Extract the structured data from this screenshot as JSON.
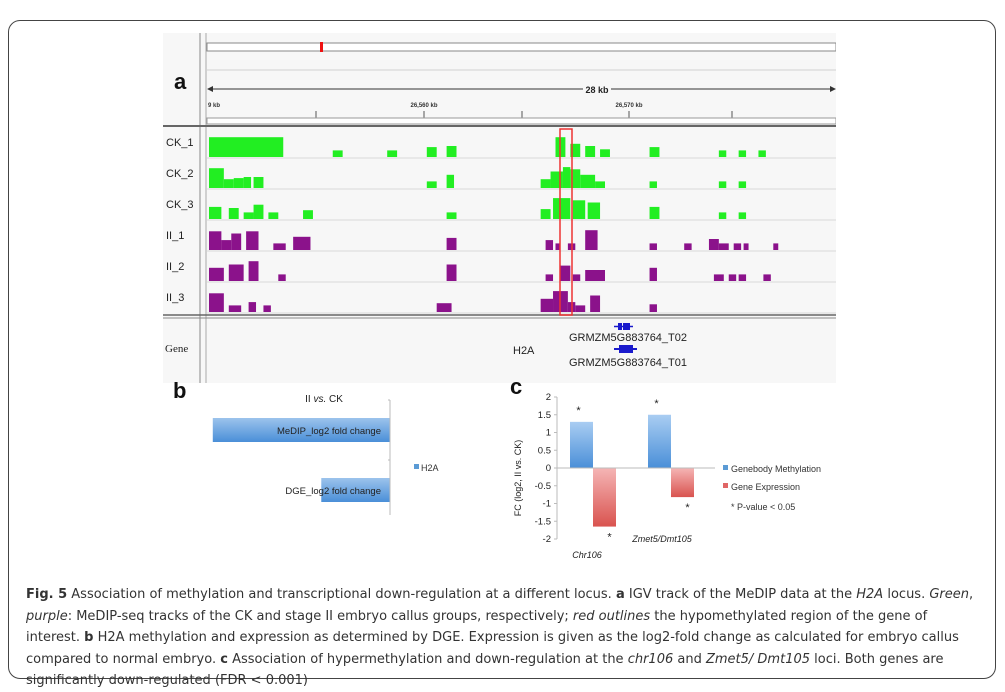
{
  "panels": {
    "a": {
      "letter": "a",
      "ruler": {
        "span_label": "28 kb",
        "ticks": [
          "9 kb",
          "26,560 kb",
          "26,570 kb"
        ]
      },
      "tracks": [
        {
          "name": "CK_1",
          "group": "CK",
          "color": "#22ee22",
          "peaks": [
            [
              0,
              15,
              0.9
            ],
            [
              6,
              9,
              0.3
            ],
            [
              11,
              14,
              0.65
            ],
            [
              25,
              27,
              0.3
            ],
            [
              36,
              38,
              0.3
            ],
            [
              44,
              46,
              0.45
            ],
            [
              48,
              50,
              0.5
            ],
            [
              70,
              72,
              0.9
            ],
            [
              73,
              75,
              0.6
            ],
            [
              76,
              78,
              0.5
            ],
            [
              79,
              81,
              0.35
            ],
            [
              89,
              91,
              0.45
            ],
            [
              103,
              104.5,
              0.3
            ],
            [
              107,
              108.5,
              0.3
            ],
            [
              111,
              112.5,
              0.3
            ]
          ]
        },
        {
          "name": "CK_2",
          "group": "CK",
          "color": "#22ee22",
          "peaks": [
            [
              0,
              3,
              0.9
            ],
            [
              3,
              5,
              0.4
            ],
            [
              5,
              7,
              0.45
            ],
            [
              7,
              8.5,
              0.5
            ],
            [
              9,
              11,
              0.5
            ],
            [
              44,
              46,
              0.3
            ],
            [
              48,
              49.5,
              0.6
            ],
            [
              67,
              69,
              0.4
            ],
            [
              69,
              71.5,
              0.75
            ],
            [
              71.5,
              73,
              0.95
            ],
            [
              73,
              75,
              0.85
            ],
            [
              75,
              78,
              0.6
            ],
            [
              78,
              80,
              0.3
            ],
            [
              89,
              90.5,
              0.3
            ],
            [
              103,
              104.5,
              0.3
            ],
            [
              107,
              108.5,
              0.3
            ]
          ]
        },
        {
          "name": "CK_3",
          "group": "CK",
          "color": "#22ee22",
          "peaks": [
            [
              0,
              2.5,
              0.55
            ],
            [
              4,
              6,
              0.5
            ],
            [
              7,
              9,
              0.3
            ],
            [
              9,
              11,
              0.65
            ],
            [
              12,
              14,
              0.3
            ],
            [
              19,
              21,
              0.4
            ],
            [
              48,
              50,
              0.3
            ],
            [
              67,
              69,
              0.45
            ],
            [
              69.5,
              73,
              0.95
            ],
            [
              73.5,
              76,
              0.85
            ],
            [
              76.5,
              79,
              0.75
            ],
            [
              89,
              91,
              0.55
            ],
            [
              103,
              104.5,
              0.3
            ],
            [
              107,
              108.5,
              0.3
            ]
          ]
        },
        {
          "name": "II_1",
          "group": "II",
          "color": "#8b128b",
          "peaks": [
            [
              0,
              2.5,
              0.85
            ],
            [
              2.5,
              4.5,
              0.45
            ],
            [
              4.5,
              6.5,
              0.75
            ],
            [
              7.5,
              10,
              0.85
            ],
            [
              13,
              15.5,
              0.3
            ],
            [
              17,
              20.5,
              0.6
            ],
            [
              48,
              50,
              0.55
            ],
            [
              68,
              69.5,
              0.45
            ],
            [
              70,
              71,
              0.3
            ],
            [
              72.5,
              74,
              0.3
            ],
            [
              76,
              78.5,
              0.9
            ],
            [
              89,
              90.5,
              0.3
            ],
            [
              96,
              97.5,
              0.3
            ],
            [
              101,
              103,
              0.5
            ],
            [
              103,
              105,
              0.3
            ],
            [
              106,
              107.5,
              0.3
            ],
            [
              108,
              109,
              0.3
            ],
            [
              114,
              115,
              0.3
            ]
          ]
        },
        {
          "name": "II_2",
          "group": "II",
          "color": "#8b128b",
          "peaks": [
            [
              0,
              3,
              0.6
            ],
            [
              4,
              7,
              0.75
            ],
            [
              8,
              10,
              0.9
            ],
            [
              14,
              15.5,
              0.3
            ],
            [
              48,
              50,
              0.75
            ],
            [
              68,
              69.5,
              0.3
            ],
            [
              71,
              73,
              0.7
            ],
            [
              73.5,
              75,
              0.3
            ],
            [
              76,
              80,
              0.5
            ],
            [
              89,
              90.5,
              0.6
            ],
            [
              102,
              104,
              0.3
            ],
            [
              105,
              106.5,
              0.3
            ],
            [
              107,
              108.5,
              0.3
            ],
            [
              112,
              113.5,
              0.3
            ]
          ]
        },
        {
          "name": "II_3",
          "group": "II",
          "color": "#8b128b",
          "peaks": [
            [
              0,
              3,
              0.85
            ],
            [
              4,
              6.5,
              0.3
            ],
            [
              8,
              9.5,
              0.45
            ],
            [
              11,
              12.5,
              0.3
            ],
            [
              46,
              49,
              0.4
            ],
            [
              67,
              69.5,
              0.6
            ],
            [
              69.5,
              72.5,
              0.95
            ],
            [
              72.5,
              74,
              0.45
            ],
            [
              74,
              76,
              0.3
            ],
            [
              77,
              79,
              0.75
            ],
            [
              89,
              90.5,
              0.35
            ]
          ]
        }
      ],
      "gene_track": {
        "name": "Gene",
        "gene_label": "H2A",
        "transcripts": [
          "GRMZM5G883764_T02",
          "GRMZM5G883764_T01"
        ]
      }
    },
    "b": {
      "letter": "b",
      "chart_data": {
        "type": "bar",
        "orientation": "horizontal",
        "title": "II vs. CK",
        "categories": [
          "MeDIP_log2 fold change",
          "DGE_log2 fold change"
        ],
        "series": [
          {
            "name": "H2A",
            "values": [
              -2.09,
              -1.79
            ]
          }
        ],
        "xlim": [
          -2.2,
          -1.6
        ],
        "xticks": [
          "-2.2",
          "-2.1",
          "-2",
          "-1.9",
          "-1.8",
          "-1.7",
          "-1.6"
        ],
        "legend": "right",
        "color": "#5b9bd5"
      }
    },
    "c": {
      "letter": "c",
      "chart_data": {
        "type": "bar",
        "ylabel": "FC (log2, II vs. CK)",
        "categories": [
          "Chr106",
          "Zmet5/Dmt105"
        ],
        "series": [
          {
            "name": "Genebody Methylation",
            "values": [
              1.3,
              1.5
            ],
            "color": "#5b9bd5"
          },
          {
            "name": "Gene Expression",
            "values": [
              -1.65,
              -0.82
            ],
            "color": "#e06666"
          }
        ],
        "ylim": [
          -2,
          2
        ],
        "yticks": [
          "2",
          "1.5",
          "1",
          "0.5",
          "0",
          "-0.5",
          "-1",
          "-1.5",
          "-2"
        ],
        "significance_marker": "*",
        "annotation": "* P-value < 0.05",
        "legend": "right"
      }
    }
  },
  "caption": {
    "fig_label": "Fig. 5",
    "title": " Association of methylation and transcriptional down-regulation at a different locus. ",
    "a_letter": "a",
    "a_text1": " IGV track of the MeDIP data at the ",
    "a_gene": "H2A",
    "a_text2": " locus. ",
    "green": "Green",
    "comma": ", ",
    "purple": "purple",
    "a_text3": ": MeDIP-seq tracks of the CK and stage II embryo callus groups, respectively; ",
    "red_outlines": "red outlines",
    "a_text4": " the hypomethylated region of the gene of interest. ",
    "b_letter": "b",
    "b_text": " H2A methylation and expression as determined by DGE. Expression is given as the log2-fold change as calculated for embryo callus compared to normal embryo. ",
    "c_letter": "c",
    "c_text1": " Association of hypermethylation and down-regulation at the ",
    "c_gene1": "chr106",
    "c_text2": " and ",
    "c_gene2": "Zmet5/ Dmt105",
    "c_text3": " loci. Both genes are significantly down-regulated (FDR < 0.001)"
  }
}
